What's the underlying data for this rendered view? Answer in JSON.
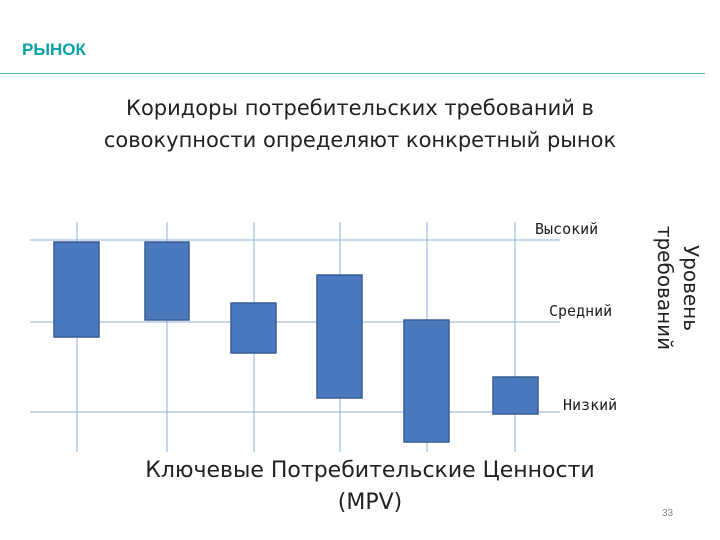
{
  "header": {
    "title": "РЫНОК"
  },
  "subtitle": {
    "line1": "Коридоры потребительских требований  в",
    "line2": "совокупности определяют конкретный рынок"
  },
  "diagram": {
    "levels": {
      "high": "Высокий",
      "mid": "Средний",
      "low": "Низкий"
    },
    "y_axis_label": {
      "line1": "Уровень",
      "line2": "требований"
    },
    "x_axis_label": {
      "line1": "Ключевые Потребительские Ценности",
      "line2": "(MPV)"
    },
    "box_fill": "#4a79bd",
    "box_stroke": "#3a5d96",
    "grid_color": "#8fb0d8"
  },
  "page": {
    "number": "33"
  }
}
